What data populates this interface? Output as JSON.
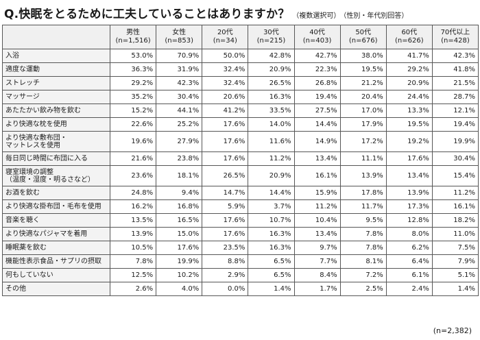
{
  "title": {
    "main": "Q.快眠をとるために工夫していることはありますか？",
    "note1": "（複数選択可）",
    "note2": "（性別・年代別回答）"
  },
  "total_n": "(n=2,382)",
  "chart_data": {
    "type": "table",
    "columns": [
      {
        "name": "男性",
        "n": "(n=1,516)"
      },
      {
        "name": "女性",
        "n": "(n=853)"
      },
      {
        "name": "20代",
        "n": "(n=34)"
      },
      {
        "name": "30代",
        "n": "(n=215)"
      },
      {
        "name": "40代",
        "n": "(n=403)"
      },
      {
        "name": "50代",
        "n": "(n=676)"
      },
      {
        "name": "60代",
        "n": "(n=626)"
      },
      {
        "name": "70代以上",
        "n": "(n=428)"
      }
    ],
    "rows": [
      {
        "label": [
          "入浴"
        ],
        "values": [
          "53.0%",
          "70.9%",
          "50.0%",
          "42.8%",
          "42.7%",
          "38.0%",
          "41.7%",
          "42.3%"
        ]
      },
      {
        "label": [
          "適度な運動"
        ],
        "values": [
          "36.3%",
          "31.9%",
          "32.4%",
          "20.9%",
          "22.3%",
          "19.5%",
          "29.2%",
          "41.8%"
        ]
      },
      {
        "label": [
          "ストレッチ"
        ],
        "values": [
          "29.2%",
          "42.3%",
          "32.4%",
          "26.5%",
          "26.8%",
          "21.2%",
          "20.9%",
          "21.5%"
        ]
      },
      {
        "label": [
          "マッサージ"
        ],
        "values": [
          "35.2%",
          "30.4%",
          "20.6%",
          "16.3%",
          "19.4%",
          "20.4%",
          "24.4%",
          "28.7%"
        ]
      },
      {
        "label": [
          "あたたかい飲み物を飲む"
        ],
        "values": [
          "15.2%",
          "44.1%",
          "41.2%",
          "33.5%",
          "27.5%",
          "17.0%",
          "13.3%",
          "12.1%"
        ]
      },
      {
        "label": [
          "より快適な枕を使用"
        ],
        "values": [
          "22.6%",
          "25.2%",
          "17.6%",
          "14.0%",
          "14.4%",
          "17.9%",
          "19.5%",
          "19.4%"
        ]
      },
      {
        "label": [
          "より快適な敷布団・",
          "マットレスを使用"
        ],
        "values": [
          "19.6%",
          "27.9%",
          "17.6%",
          "11.6%",
          "14.9%",
          "17.2%",
          "19.2%",
          "19.9%"
        ]
      },
      {
        "label": [
          "毎日同じ時間に布団に入る"
        ],
        "values": [
          "21.6%",
          "23.8%",
          "17.6%",
          "11.2%",
          "13.4%",
          "11.1%",
          "17.6%",
          "30.4%"
        ]
      },
      {
        "label": [
          "寝室環境の調整",
          "（温度・湿度・明るさなど）"
        ],
        "values": [
          "23.6%",
          "18.1%",
          "26.5%",
          "20.9%",
          "16.1%",
          "13.9%",
          "13.4%",
          "15.4%"
        ]
      },
      {
        "label": [
          "お酒を飲む"
        ],
        "values": [
          "24.8%",
          "9.4%",
          "14.7%",
          "14.4%",
          "15.9%",
          "17.8%",
          "13.9%",
          "11.2%"
        ]
      },
      {
        "label": [
          "より快適な掛布団・毛布を使用"
        ],
        "values": [
          "16.2%",
          "16.8%",
          "5.9%",
          "3.7%",
          "11.2%",
          "11.7%",
          "17.3%",
          "16.1%"
        ]
      },
      {
        "label": [
          "音楽を聴く"
        ],
        "values": [
          "13.5%",
          "16.5%",
          "17.6%",
          "10.7%",
          "10.4%",
          "9.5%",
          "12.8%",
          "18.2%"
        ]
      },
      {
        "label": [
          "より快適なパジャマを着用"
        ],
        "values": [
          "13.9%",
          "15.0%",
          "17.6%",
          "16.3%",
          "13.4%",
          "7.8%",
          "8.0%",
          "11.0%"
        ]
      },
      {
        "label": [
          "睡眠薬を飲む"
        ],
        "values": [
          "10.5%",
          "17.6%",
          "23.5%",
          "16.3%",
          "9.7%",
          "7.8%",
          "6.2%",
          "7.5%"
        ]
      },
      {
        "label": [
          "機能性表示食品・サプリの摂取"
        ],
        "values": [
          "7.8%",
          "19.9%",
          "8.8%",
          "6.5%",
          "7.7%",
          "8.1%",
          "6.4%",
          "7.9%"
        ]
      },
      {
        "label": [
          "何もしていない"
        ],
        "values": [
          "12.5%",
          "10.2%",
          "2.9%",
          "6.5%",
          "8.4%",
          "7.2%",
          "6.1%",
          "5.1%"
        ]
      },
      {
        "label": [
          "その他"
        ],
        "values": [
          "2.6%",
          "4.0%",
          "0.0%",
          "1.4%",
          "1.7%",
          "2.5%",
          "2.4%",
          "1.4%"
        ]
      }
    ]
  }
}
